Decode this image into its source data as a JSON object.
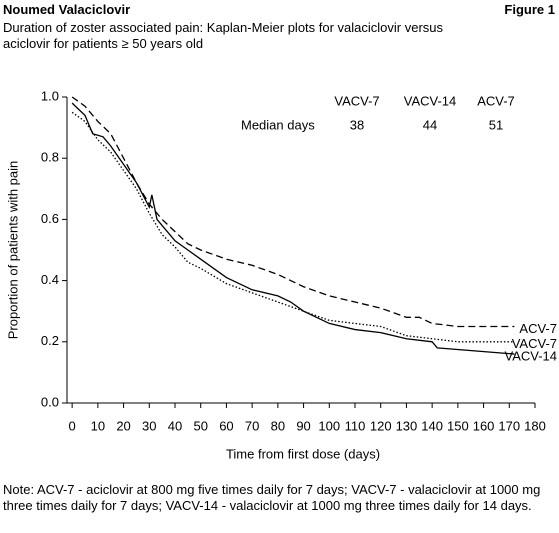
{
  "header": {
    "title": "Noumed Valaciclovir",
    "figure": "Figure 1",
    "subtitle": "Duration of zoster associated pain: Kaplan-Meier plots for valaciclovir versus aciclovir for patients ≥ 50 years old"
  },
  "chart_data": {
    "type": "line",
    "xlabel": "Time from first dose (days)",
    "ylabel": "Proportion of patients with pain",
    "xlim": [
      -2,
      180
    ],
    "ylim": [
      0,
      1
    ],
    "xticks": [
      0,
      10,
      20,
      30,
      40,
      50,
      60,
      70,
      80,
      90,
      100,
      110,
      120,
      130,
      140,
      150,
      160,
      170,
      180
    ],
    "yticks": [
      {
        "value": 0,
        "label": "0.0"
      },
      0.2,
      0.4,
      0.6,
      0.8,
      {
        "value": 1,
        "label": "1.0"
      }
    ],
    "series": [
      {
        "name": "ACV-7",
        "color": "#000000",
        "linestyle": "dashed",
        "x": [
          0,
          5,
          10,
          15,
          20,
          25,
          30,
          35,
          40,
          45,
          50,
          60,
          70,
          80,
          90,
          100,
          110,
          120,
          130,
          135,
          140,
          150,
          172
        ],
        "values": [
          1.0,
          0.97,
          0.92,
          0.88,
          0.8,
          0.72,
          0.65,
          0.6,
          0.56,
          0.52,
          0.5,
          0.47,
          0.45,
          0.42,
          0.38,
          0.35,
          0.33,
          0.31,
          0.28,
          0.28,
          0.26,
          0.25,
          0.25
        ]
      },
      {
        "name": "VACV-7",
        "color": "#000000",
        "linestyle": "dotted",
        "x": [
          0,
          5,
          10,
          15,
          20,
          25,
          30,
          35,
          40,
          45,
          50,
          60,
          70,
          80,
          90,
          100,
          110,
          120,
          130,
          140,
          150,
          172
        ],
        "values": [
          0.95,
          0.92,
          0.86,
          0.82,
          0.76,
          0.7,
          0.62,
          0.55,
          0.51,
          0.46,
          0.44,
          0.39,
          0.36,
          0.33,
          0.3,
          0.27,
          0.26,
          0.25,
          0.22,
          0.21,
          0.2,
          0.2
        ]
      },
      {
        "name": "VACV-14",
        "color": "#000000",
        "linestyle": "solid",
        "x": [
          0,
          5,
          8,
          12,
          15,
          20,
          25,
          30,
          31,
          33,
          40,
          45,
          50,
          60,
          70,
          80,
          85,
          90,
          100,
          110,
          120,
          130,
          140,
          142,
          172
        ],
        "values": [
          0.98,
          0.94,
          0.88,
          0.87,
          0.84,
          0.78,
          0.72,
          0.64,
          0.68,
          0.6,
          0.53,
          0.5,
          0.47,
          0.41,
          0.37,
          0.35,
          0.33,
          0.3,
          0.26,
          0.24,
          0.23,
          0.21,
          0.2,
          0.18,
          0.16
        ]
      }
    ],
    "median_table": {
      "columns": [
        "VACV-7",
        "VACV-14",
        "ACV-7"
      ],
      "row_label": "Median days",
      "values": [
        38,
        44,
        51
      ]
    }
  },
  "note": "Note: ACV-7 - aciclovir at 800 mg five times daily for 7 days; VACV-7 - valaciclovir at 1000 mg three times daily for 7 days; VACV-14 - valaciclovir at 1000 mg three times daily for 14 days."
}
